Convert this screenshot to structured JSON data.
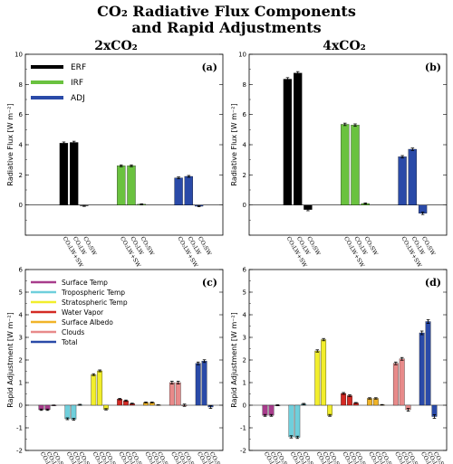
{
  "figure": {
    "title_line1": "CO₂ Radiative Flux Components",
    "title_line2": "and Rapid Adjustments",
    "col_left": "2xCO₂",
    "col_right": "4xCO₂"
  },
  "colors": {
    "ERF": "#000000",
    "IRF": "#6ac23f",
    "ADJ": "#2a4aa8",
    "Surface Temp": "#a83c8c",
    "Tropospheric Temp": "#6fcfdc",
    "Stratospheric Temp": "#f2ee2c",
    "Water Vapor": "#d42a24",
    "Surface Albedo": "#f0b428",
    "Clouds": "#e88a8a",
    "Total": "#2a4aa8"
  },
  "chart_data": [
    {
      "type": "bar",
      "panel": "(a)",
      "ylabel": "Radiative Flux [W m⁻²]",
      "ylim": [
        -2,
        10
      ],
      "yticks": [
        0,
        2,
        4,
        6,
        8,
        10
      ],
      "legend": [
        "ERF",
        "IRF",
        "ADJ"
      ],
      "bar_labels": [
        "CO₂LW+SW",
        "CO₂LW",
        "CO₂SW"
      ],
      "groups": [
        {
          "name": "ERF",
          "values": [
            4.1,
            4.15,
            -0.05
          ],
          "errors": [
            0.08,
            0.08,
            0.04
          ]
        },
        {
          "name": "IRF",
          "values": [
            2.6,
            2.6,
            0.05
          ],
          "errors": [
            0.06,
            0.06,
            0.03
          ]
        },
        {
          "name": "ADJ",
          "values": [
            1.8,
            1.9,
            -0.08
          ],
          "errors": [
            0.06,
            0.06,
            0.03
          ]
        }
      ]
    },
    {
      "type": "bar",
      "panel": "(b)",
      "ylabel": "Radiative Flux [W m⁻²]",
      "ylim": [
        -2,
        10
      ],
      "yticks": [
        0,
        2,
        4,
        6,
        8,
        10
      ],
      "bar_labels": [
        "CO₂LW+SW",
        "CO₂LW",
        "CO₂SW"
      ],
      "groups": [
        {
          "name": "ERF",
          "values": [
            8.35,
            8.75,
            -0.3
          ],
          "errors": [
            0.1,
            0.1,
            0.08
          ]
        },
        {
          "name": "IRF",
          "values": [
            5.35,
            5.3,
            0.1
          ],
          "errors": [
            0.08,
            0.08,
            0.04
          ]
        },
        {
          "name": "ADJ",
          "values": [
            3.2,
            3.7,
            -0.55
          ],
          "errors": [
            0.08,
            0.08,
            0.08
          ]
        }
      ]
    },
    {
      "type": "bar",
      "panel": "(c)",
      "ylabel": "Rapid Adjustment [W m⁻²]",
      "ylim": [
        -2,
        6
      ],
      "yticks": [
        -2,
        -1,
        0,
        1,
        2,
        3,
        4,
        5,
        6
      ],
      "legend": [
        "Surface Temp",
        "Tropospheric Temp",
        "Stratospheric Temp",
        "Water Vapor",
        "Surface Albedo",
        "Clouds",
        "Total"
      ],
      "bar_labels": [
        "CO₂LW+SW",
        "CO₂LW",
        "CO₂SW"
      ],
      "groups": [
        {
          "name": "Surface Temp",
          "values": [
            -0.2,
            -0.2,
            0.0
          ],
          "errors": [
            0.03,
            0.03,
            0.01
          ]
        },
        {
          "name": "Tropospheric Temp",
          "values": [
            -0.6,
            -0.62,
            0.02
          ],
          "errors": [
            0.04,
            0.04,
            0.02
          ]
        },
        {
          "name": "Stratospheric Temp",
          "values": [
            1.35,
            1.52,
            -0.18
          ],
          "errors": [
            0.04,
            0.04,
            0.03
          ]
        },
        {
          "name": "Water Vapor",
          "values": [
            0.27,
            0.2,
            0.07
          ],
          "errors": [
            0.03,
            0.03,
            0.02
          ]
        },
        {
          "name": "Surface Albedo",
          "values": [
            0.12,
            0.12,
            0.01
          ],
          "errors": [
            0.02,
            0.02,
            0.01
          ]
        },
        {
          "name": "Clouds",
          "values": [
            1.0,
            1.0,
            0.0
          ],
          "errors": [
            0.06,
            0.06,
            0.05
          ]
        },
        {
          "name": "Total",
          "values": [
            1.85,
            1.95,
            -0.08
          ],
          "errors": [
            0.06,
            0.06,
            0.06
          ]
        }
      ]
    },
    {
      "type": "bar",
      "panel": "(d)",
      "ylabel": "Rapid Adjustment [W m⁻²]",
      "ylim": [
        -2,
        6
      ],
      "yticks": [
        -2,
        -1,
        0,
        1,
        2,
        3,
        4,
        5,
        6
      ],
      "bar_labels": [
        "CO₂LW+SW",
        "CO₂LW",
        "CO₂SW"
      ],
      "groups": [
        {
          "name": "Surface Temp",
          "values": [
            -0.45,
            -0.45,
            0.0
          ],
          "errors": [
            0.04,
            0.04,
            0.02
          ]
        },
        {
          "name": "Tropospheric Temp",
          "values": [
            -1.4,
            -1.42,
            0.05
          ],
          "errors": [
            0.05,
            0.05,
            0.03
          ]
        },
        {
          "name": "Stratospheric Temp",
          "values": [
            2.4,
            2.9,
            -0.45
          ],
          "errors": [
            0.05,
            0.05,
            0.04
          ]
        },
        {
          "name": "Water Vapor",
          "values": [
            0.52,
            0.42,
            0.1
          ],
          "errors": [
            0.04,
            0.04,
            0.02
          ]
        },
        {
          "name": "Surface Albedo",
          "values": [
            0.3,
            0.3,
            0.02
          ],
          "errors": [
            0.03,
            0.03,
            0.01
          ]
        },
        {
          "name": "Clouds",
          "values": [
            1.85,
            2.05,
            -0.2
          ],
          "errors": [
            0.06,
            0.06,
            0.06
          ]
        },
        {
          "name": "Total",
          "values": [
            3.2,
            3.7,
            -0.5
          ],
          "errors": [
            0.08,
            0.08,
            0.08
          ]
        }
      ]
    }
  ]
}
